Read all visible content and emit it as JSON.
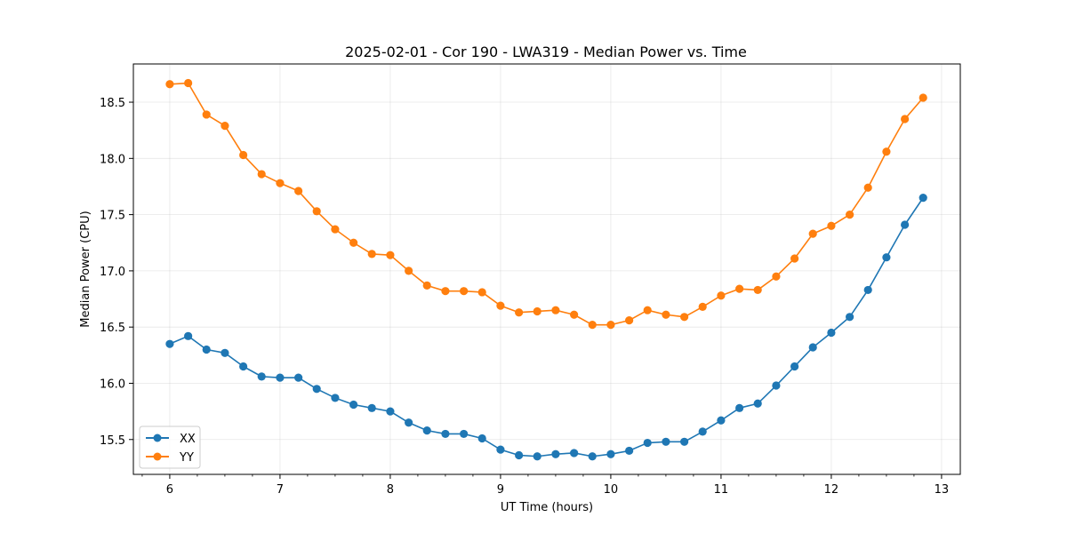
{
  "chart_data": {
    "type": "line",
    "title": "2025-02-01 - Cor 190 - LWA319 - Median Power vs. Time",
    "xlabel": "UT Time (hours)",
    "ylabel": "Median Power (CPU)",
    "xlim": [
      5.67,
      13.17
    ],
    "ylim": [
      15.19,
      18.84
    ],
    "xticks": [
      6,
      7,
      8,
      9,
      10,
      11,
      12,
      13
    ],
    "yticks": [
      15.5,
      16.0,
      16.5,
      17.0,
      17.5,
      18.0,
      18.5
    ],
    "xtick_labels": [
      "6",
      "7",
      "8",
      "9",
      "10",
      "11",
      "12",
      "13"
    ],
    "ytick_labels": [
      "15.5",
      "16.0",
      "16.5",
      "17.0",
      "17.5",
      "18.0",
      "18.5"
    ],
    "grid": true,
    "legend_position": "lower-left",
    "x": [
      6.0,
      6.167,
      6.333,
      6.5,
      6.667,
      6.833,
      7.0,
      7.167,
      7.333,
      7.5,
      7.667,
      7.833,
      8.0,
      8.167,
      8.333,
      8.5,
      8.667,
      8.833,
      9.0,
      9.167,
      9.333,
      9.5,
      9.667,
      9.833,
      10.0,
      10.167,
      10.333,
      10.5,
      10.667,
      10.833,
      11.0,
      11.167,
      11.333,
      11.5,
      11.667,
      11.833,
      12.0,
      12.167,
      12.333,
      12.5,
      12.667,
      12.833
    ],
    "series": [
      {
        "name": "XX",
        "color": "#1f77b4",
        "values": [
          16.35,
          16.42,
          16.3,
          16.27,
          16.15,
          16.06,
          16.05,
          16.05,
          15.95,
          15.87,
          15.81,
          15.78,
          15.75,
          15.65,
          15.58,
          15.55,
          15.55,
          15.51,
          15.41,
          15.36,
          15.35,
          15.37,
          15.38,
          15.35,
          15.37,
          15.4,
          15.47,
          15.48,
          15.48,
          15.57,
          15.67,
          15.78,
          15.82,
          15.98,
          16.15,
          16.32,
          16.45,
          16.59,
          16.83,
          17.12,
          17.41,
          17.65
        ]
      },
      {
        "name": "YY",
        "color": "#ff7f0e",
        "values": [
          18.66,
          18.67,
          18.39,
          18.29,
          18.03,
          17.86,
          17.78,
          17.71,
          17.53,
          17.37,
          17.25,
          17.15,
          17.14,
          17.0,
          16.87,
          16.82,
          16.82,
          16.81,
          16.69,
          16.63,
          16.64,
          16.65,
          16.61,
          16.52,
          16.52,
          16.56,
          16.65,
          16.61,
          16.59,
          16.68,
          16.78,
          16.84,
          16.83,
          16.95,
          17.11,
          17.33,
          17.4,
          17.5,
          17.74,
          18.06,
          18.35,
          18.54
        ]
      }
    ]
  }
}
